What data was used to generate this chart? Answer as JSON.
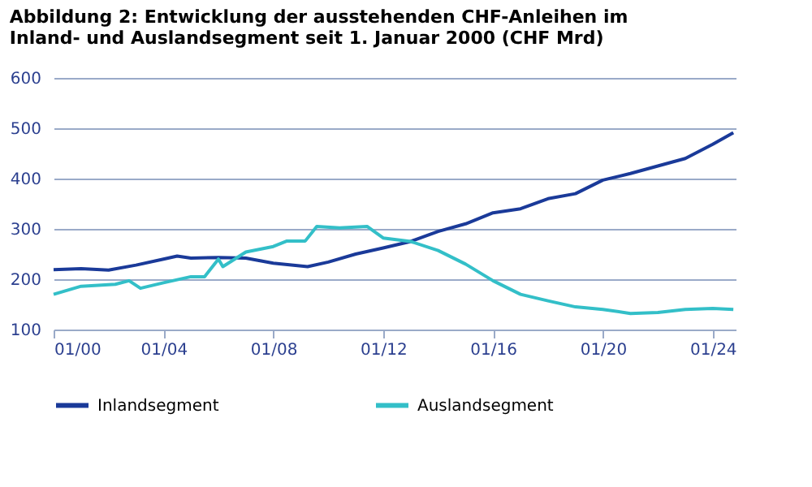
{
  "chart_data": {
    "type": "line",
    "title": "Abbildung 2: Entwicklung der ausstehenden CHF-Anleihen im Inland- und Auslandsegment seit 1. Januar 2000 (CHF Mrd)",
    "series": [
      {
        "name": "Inlandsegment",
        "color": "#1a3a99",
        "x": [
          "2000-01",
          "2001-01",
          "2002-01",
          "2003-01",
          "2004-01",
          "2004-07",
          "2005-01",
          "2006-01",
          "2007-01",
          "2008-01",
          "2009-04",
          "2010-01",
          "2011-01",
          "2012-01",
          "2013-01",
          "2014-01",
          "2015-01",
          "2016-01",
          "2017-01",
          "2018-01",
          "2019-01",
          "2020-01",
          "2021-01",
          "2022-01",
          "2023-01",
          "2024-01",
          "2024-10"
        ],
        "values": [
          219,
          221,
          218,
          228,
          240,
          246,
          242,
          243,
          242,
          232,
          225,
          234,
          250,
          262,
          275,
          295,
          310,
          332,
          340,
          360,
          370,
          397,
          410,
          425,
          440,
          468,
          491
        ]
      },
      {
        "name": "Auslandsegment",
        "color": "#33bfc8",
        "x": [
          "2000-01",
          "2001-01",
          "2002-04",
          "2002-10",
          "2003-03",
          "2004-01",
          "2005-01",
          "2005-07",
          "2006-01",
          "2006-03",
          "2007-01",
          "2008-01",
          "2008-07",
          "2009-03",
          "2009-08",
          "2010-06",
          "2011-06",
          "2012-01",
          "2013-01",
          "2014-01",
          "2015-01",
          "2016-01",
          "2017-01",
          "2018-01",
          "2019-01",
          "2020-01",
          "2021-01",
          "2022-01",
          "2023-01",
          "2024-01",
          "2024-10"
        ],
        "values": [
          170,
          186,
          190,
          197,
          182,
          193,
          205,
          205,
          240,
          225,
          254,
          265,
          276,
          276,
          305,
          302,
          305,
          282,
          275,
          257,
          230,
          197,
          170,
          157,
          145,
          140,
          132,
          134,
          140,
          142,
          140
        ]
      }
    ],
    "xlim": [
      "2000-01",
      "2024-11"
    ],
    "xticks": [
      {
        "value": "2000-01",
        "label": "01/00"
      },
      {
        "value": "2004-01",
        "label": "01/04"
      },
      {
        "value": "2008-01",
        "label": "01/08"
      },
      {
        "value": "2012-01",
        "label": "01/12"
      },
      {
        "value": "2016-01",
        "label": "01/16"
      },
      {
        "value": "2020-01",
        "label": "01/20"
      },
      {
        "value": "2024-01",
        "label": "01/24"
      }
    ],
    "ylim": [
      100,
      600
    ],
    "yticks": [
      100,
      200,
      300,
      400,
      500,
      600
    ],
    "grid": "y",
    "legend": "bottom",
    "marker": "none",
    "line_style": "solid"
  }
}
